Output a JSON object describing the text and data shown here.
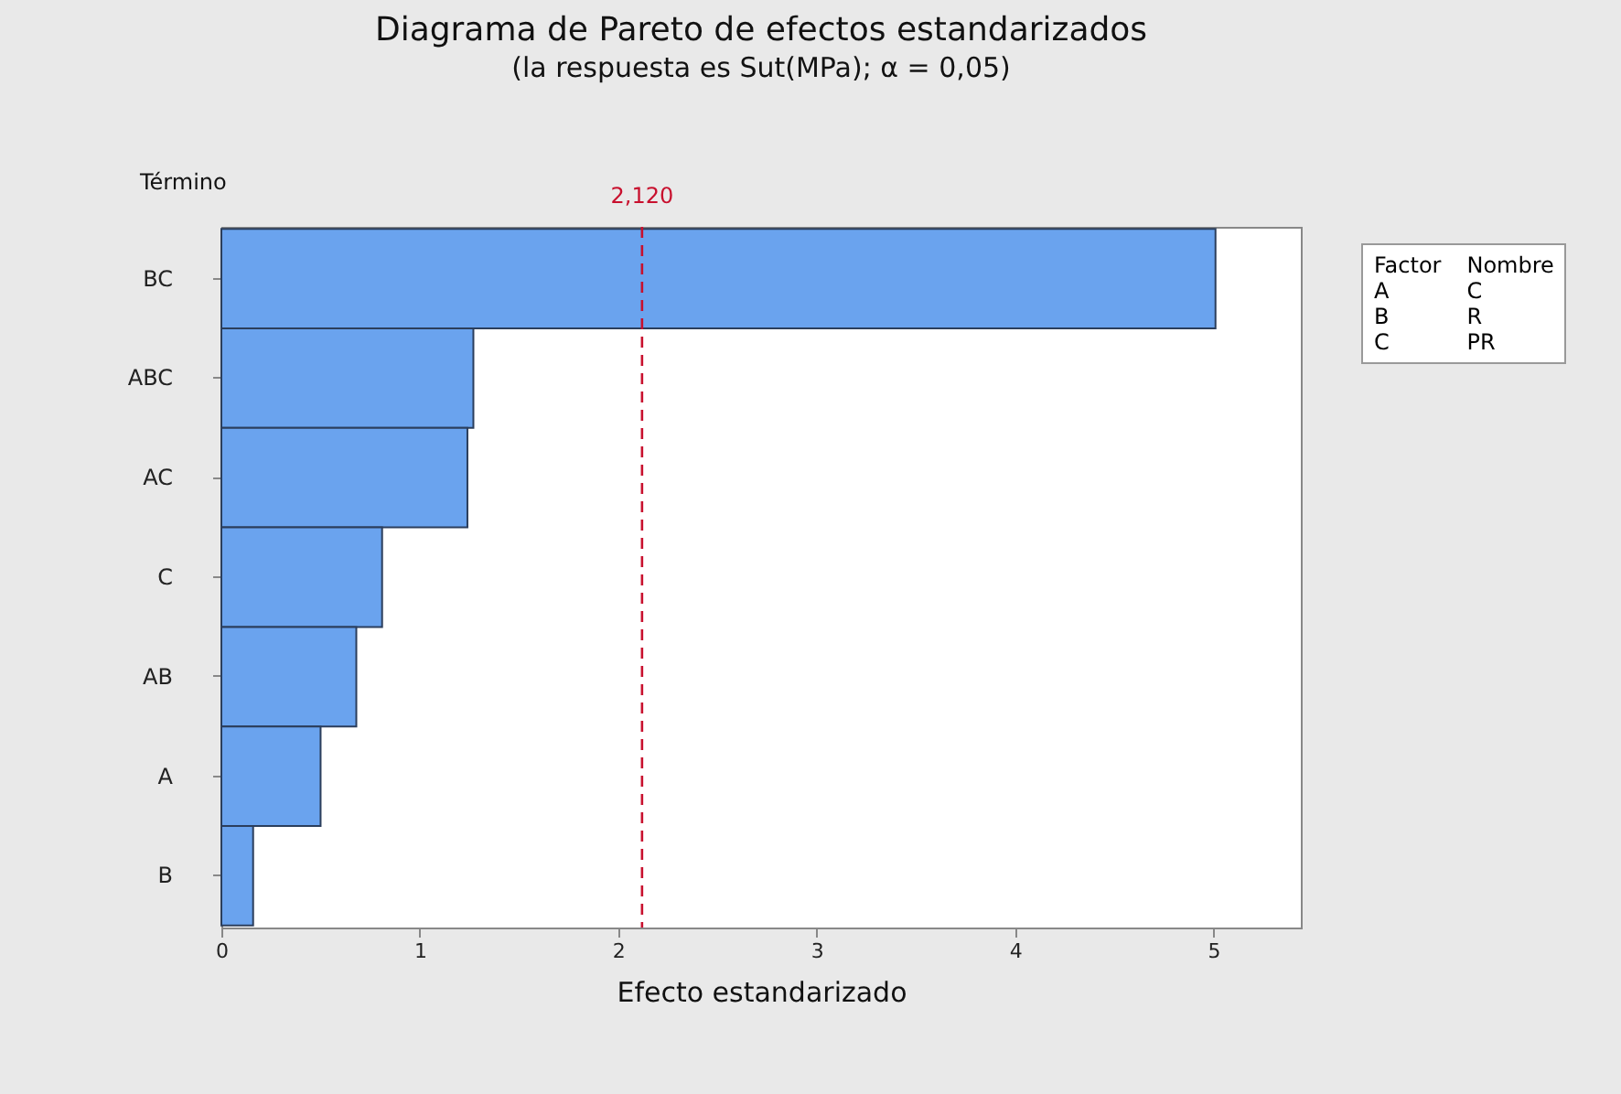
{
  "chart_data": {
    "type": "bar",
    "orientation": "horizontal",
    "title": "Diagrama de Pareto de efectos estandarizados",
    "subtitle": "(la respuesta es Sut(MPa); α = 0,05)",
    "xlabel": "Efecto estandarizado",
    "ylabel": "Término",
    "categories": [
      "BC",
      "ABC",
      "AC",
      "C",
      "AB",
      "A",
      "B"
    ],
    "values": [
      5.01,
      1.27,
      1.24,
      0.81,
      0.68,
      0.5,
      0.16
    ],
    "color": "#6aa3ee",
    "xlim": [
      0,
      5.44
    ],
    "xticks": [
      0,
      1,
      2,
      3,
      4,
      5
    ],
    "ref_lines": [
      {
        "axis": "x",
        "value": 2.12,
        "label": "2,120",
        "color": "#c8102e",
        "line_style": "dashed"
      }
    ],
    "annotations": [
      "Factor",
      "Nombre",
      "A",
      "C",
      "B",
      "R",
      "C",
      "PR"
    ],
    "grid": false
  }
}
